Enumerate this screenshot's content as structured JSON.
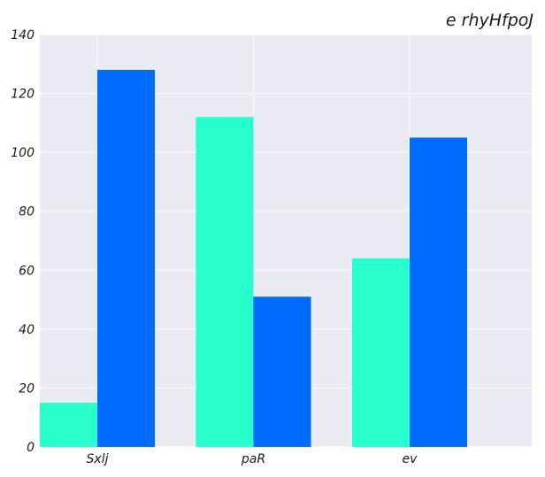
{
  "chart_data": {
    "type": "bar",
    "title": "e rhyHfpoJ",
    "xlabel": "",
    "ylabel": "",
    "categories": [
      "Sxlj",
      "paR",
      "ev"
    ],
    "series": [
      {
        "values": [
          15,
          112,
          64
        ],
        "color": "#27ffcc"
      },
      {
        "values": [
          128,
          51,
          105
        ],
        "color": "#006bff"
      }
    ],
    "ylim": [
      0,
      140
    ],
    "yticks": [
      0,
      20,
      40,
      60,
      80,
      100,
      120,
      140
    ],
    "grid": true,
    "background": "#eaeaf2",
    "grid_color": "#ffffff",
    "legend": "none"
  }
}
